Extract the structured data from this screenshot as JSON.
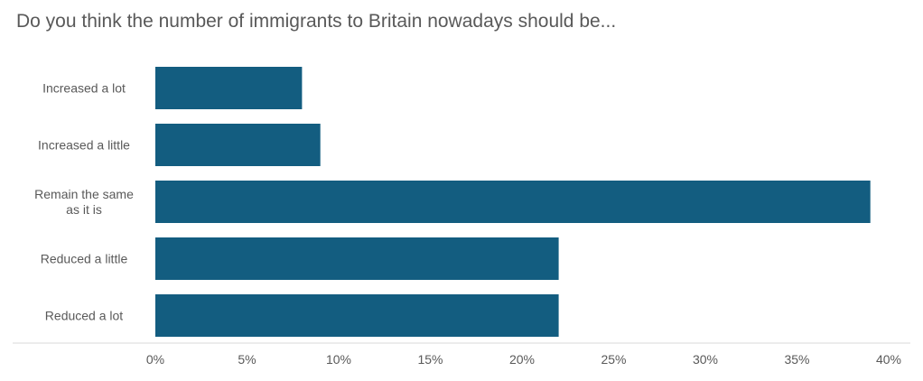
{
  "title": "Do you think the number of immigrants to Britain nowadays should be...",
  "chart_data": {
    "type": "bar",
    "orientation": "horizontal",
    "categories": [
      [
        "Increased a lot"
      ],
      [
        "Increased a little"
      ],
      [
        "Remain the same",
        "as it is"
      ],
      [
        "Reduced a little"
      ],
      [
        "Reduced a lot"
      ]
    ],
    "values": [
      8,
      9,
      39,
      22,
      22
    ],
    "xticks": [
      "0%",
      "5%",
      "10%",
      "15%",
      "20%",
      "25%",
      "30%",
      "35%",
      "40%"
    ],
    "xlim": [
      0,
      40
    ],
    "grid": false,
    "bar_color": "#135d80",
    "axis_color": "#d9d9d9"
  }
}
